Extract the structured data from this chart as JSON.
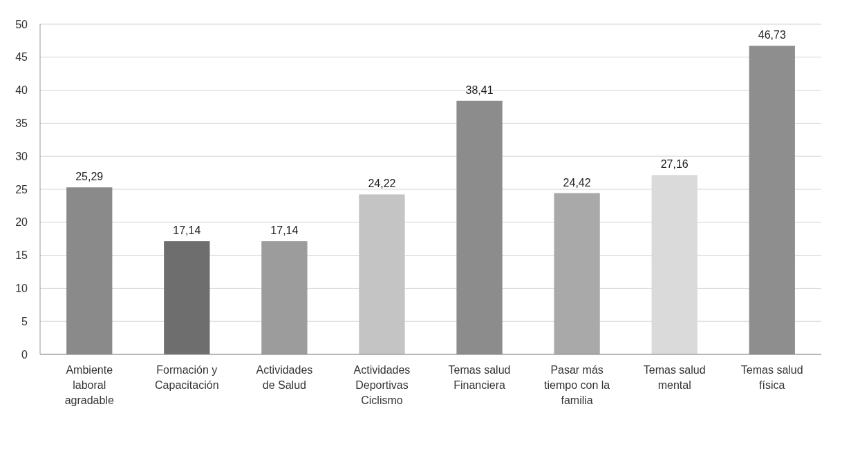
{
  "chart_data": {
    "type": "bar",
    "categories": [
      "Ambiente laboral agradable",
      "Formación y Capacitación",
      "Actividades de Salud",
      "Actividades Deportivas Ciclismo",
      "Temas salud Financiera",
      "Pasar más tiempo con la familia",
      "Temas salud mental",
      "Temas salud física"
    ],
    "values": [
      25.29,
      17.14,
      17.14,
      24.22,
      38.41,
      24.42,
      27.16,
      46.73
    ],
    "value_labels": [
      "25,29",
      "17,14",
      "17,14",
      "24,22",
      "38,41",
      "24,42",
      "27,16",
      "46,73"
    ],
    "colors": [
      "#8a8a8a",
      "#6e6e6e",
      "#9c9c9c",
      "#c4c4c4",
      "#8c8c8c",
      "#a9a9a9",
      "#dadada",
      "#8e8e8e"
    ],
    "ylim": [
      0,
      50
    ],
    "yticks": [
      0,
      5,
      10,
      15,
      20,
      25,
      30,
      35,
      40,
      45,
      50
    ],
    "grid": "y"
  }
}
